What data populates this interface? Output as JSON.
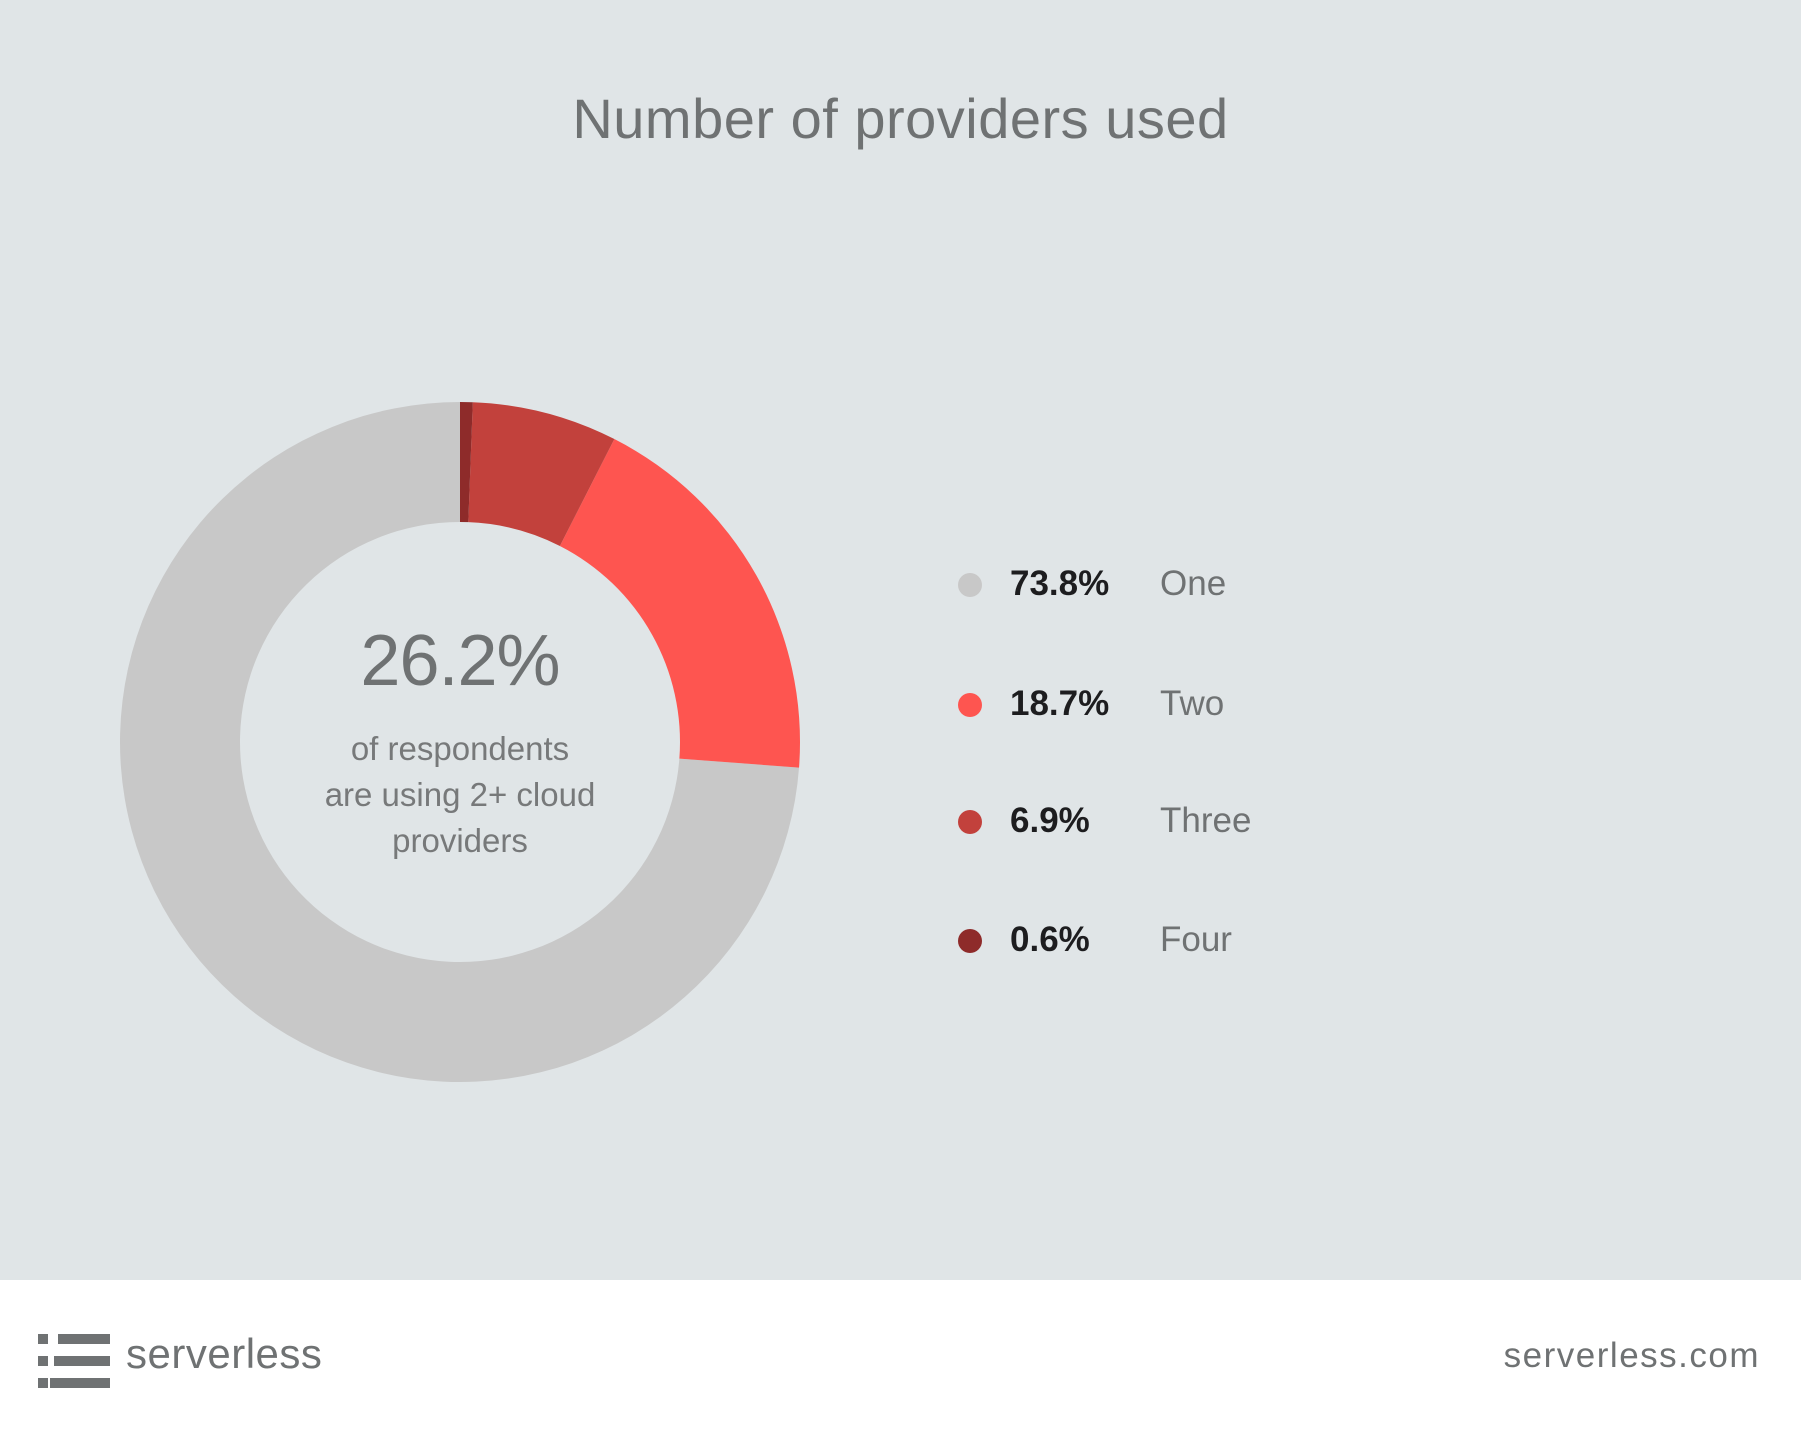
{
  "chart_data": {
    "type": "pie",
    "title": "Number of providers used",
    "categories": [
      "One",
      "Two",
      "Three",
      "Four"
    ],
    "values": [
      73.8,
      18.7,
      6.9,
      0.6
    ],
    "value_labels": [
      "73.8%",
      "18.7%",
      "6.9%",
      "0.6%"
    ],
    "colors": [
      "#c8c8c8",
      "#fe5550",
      "#c2413c",
      "#8e2b2a"
    ],
    "donut": true,
    "legend_position": "right",
    "center_value": "26.2%",
    "center_text": [
      "of respondents",
      "are using 2+ cloud",
      "providers"
    ]
  },
  "footer": {
    "brand": "serverless",
    "url": "serverless.com",
    "logo_icon": "serverless-logo-icon"
  }
}
